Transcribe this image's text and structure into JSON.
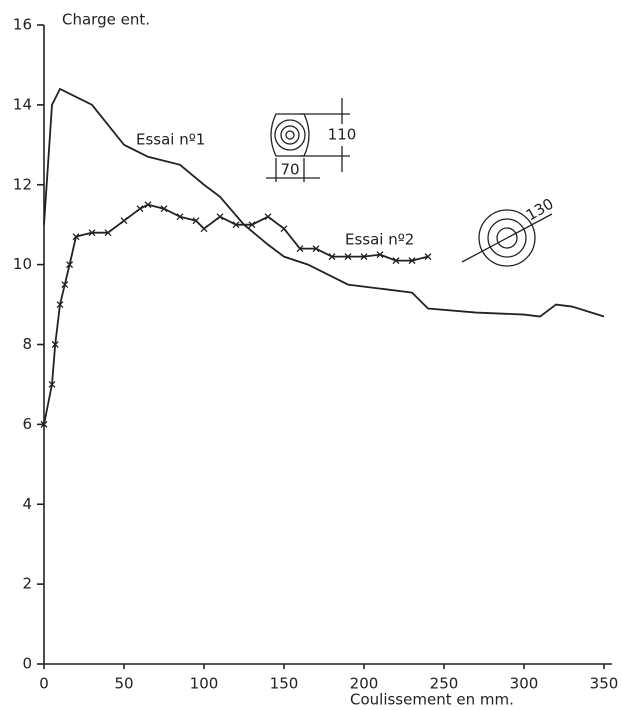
{
  "chart_data": {
    "type": "line",
    "y_label": "Charge ent.",
    "x_label": "Coulissement en mm.",
    "xlim": [
      0,
      350
    ],
    "xticks": [
      0,
      50,
      100,
      150,
      200,
      250,
      300,
      350
    ],
    "ylim": [
      0,
      16
    ],
    "yticks": [
      0,
      2,
      4,
      6,
      8,
      10,
      12,
      14,
      16
    ],
    "grid": false,
    "series": [
      {
        "name": "Essai nº1",
        "color": "#222222",
        "marker": "none",
        "x": [
          0,
          5,
          10,
          30,
          50,
          65,
          85,
          100,
          110,
          125,
          140,
          150,
          165,
          175,
          190,
          210,
          230,
          240,
          270,
          300,
          310,
          320,
          330,
          350
        ],
        "values": [
          11.0,
          14.0,
          14.4,
          14.0,
          13.0,
          12.7,
          12.5,
          12.0,
          11.7,
          11.0,
          10.5,
          10.2,
          10.0,
          9.8,
          9.5,
          9.4,
          9.3,
          8.9,
          8.8,
          8.75,
          8.7,
          9.0,
          8.95,
          8.7
        ]
      },
      {
        "name": "Essai nº2",
        "color": "#222222",
        "marker": "x",
        "x": [
          0,
          5,
          7,
          10,
          13,
          16,
          20,
          30,
          40,
          50,
          60,
          65,
          75,
          85,
          95,
          100,
          110,
          120,
          130,
          140,
          150,
          160,
          170,
          180,
          190,
          200,
          210,
          220,
          230,
          240
        ],
        "values": [
          6.0,
          7.0,
          8.0,
          9.0,
          9.5,
          10.0,
          10.7,
          10.8,
          10.8,
          11.1,
          11.4,
          11.5,
          11.4,
          11.2,
          11.1,
          10.9,
          11.2,
          11.0,
          11.0,
          11.2,
          10.9,
          10.4,
          10.4,
          10.2,
          10.2,
          10.2,
          10.25,
          10.1,
          10.1,
          10.2
        ]
      }
    ],
    "annotations": [
      "110",
      "70",
      "130"
    ]
  }
}
